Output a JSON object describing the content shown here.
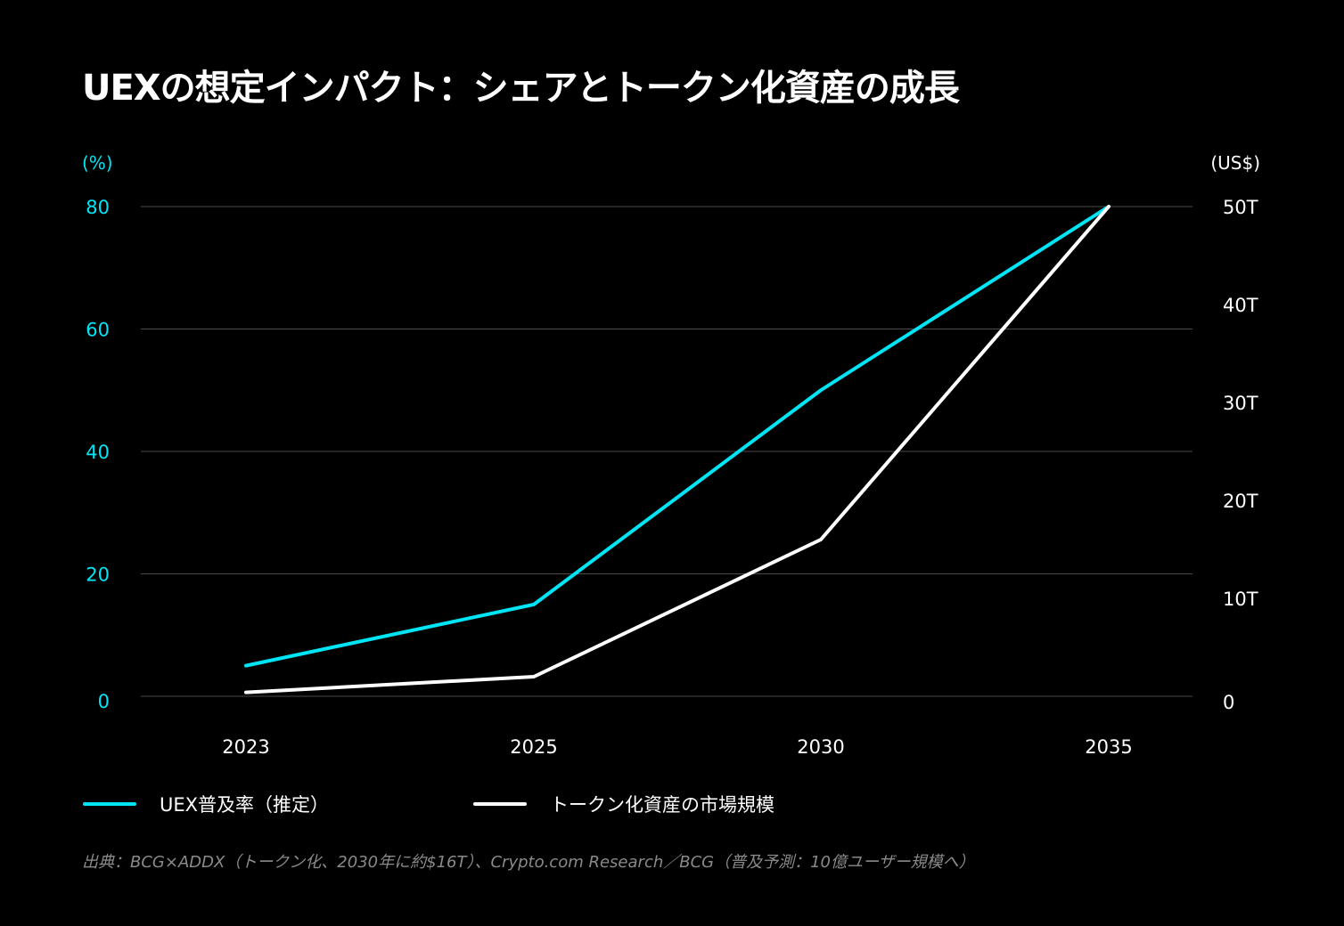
{
  "title": "UEXの想定インパクト：シェアとトークン化資産の成長",
  "chart_data": {
    "type": "line",
    "title": "UEXの想定インパクト：シェアとトークン化資産の成長",
    "categories": [
      "2023",
      "2025",
      "2030",
      "2035"
    ],
    "y_left": {
      "unit_label": "(%)",
      "range": [
        0,
        80
      ],
      "ticks": [
        "0",
        "20",
        "40",
        "60",
        "80"
      ],
      "color": "#00E5F5"
    },
    "y_right": {
      "unit_label": "(US$)",
      "range": [
        0,
        50
      ],
      "ticks": [
        "0",
        "10T",
        "20T",
        "30T",
        "40T",
        "50T"
      ],
      "color": "#ffffff"
    },
    "grid": true,
    "legend_position": "bottom-left",
    "series": [
      {
        "name": "UEX普及率（推定）",
        "axis": "left",
        "color": "#00E5F5",
        "values": [
          5,
          15,
          50,
          80
        ]
      },
      {
        "name": "トークン化資産の市場規模",
        "axis": "right",
        "color": "#ffffff",
        "values": [
          0.4,
          2,
          16,
          50
        ]
      }
    ]
  },
  "source": "出典：BCG×ADDX（トークン化、2030年に約$16T）、Crypto.com Research／BCG（普及予測：10億ユーザー規模へ）"
}
